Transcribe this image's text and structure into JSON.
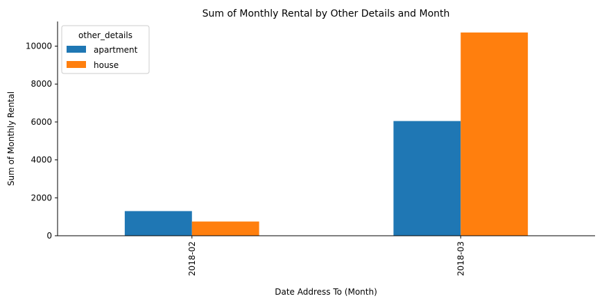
{
  "chart_data": {
    "type": "bar",
    "title": "Sum of Monthly Rental by Other Details and Month",
    "xlabel": "Date Address To (Month)",
    "ylabel": "Sum of Monthly Rental",
    "categories": [
      "2018-02",
      "2018-03"
    ],
    "series": [
      {
        "name": "apartment",
        "values": [
          1300,
          6050
        ],
        "color": "#1f77b4"
      },
      {
        "name": "house",
        "values": [
          750,
          10720
        ],
        "color": "#ff7f0e"
      }
    ],
    "ylim": [
      0,
      11300
    ],
    "yticks": [
      0,
      2000,
      4000,
      6000,
      8000,
      10000
    ],
    "legend": {
      "title": "other_details",
      "position": "top-left"
    },
    "grid": false
  }
}
